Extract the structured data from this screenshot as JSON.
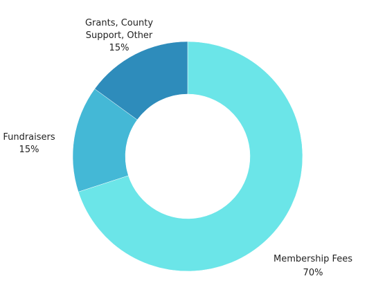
{
  "chart_data": {
    "type": "pie",
    "variant": "donut",
    "title": "",
    "legend": "none",
    "slices": [
      {
        "name": "Membership Fees",
        "value": 70,
        "value_label": "70%",
        "label_lines": [
          "Membership Fees"
        ],
        "color": "#6be5e8"
      },
      {
        "name": "Fundraisers",
        "value": 15,
        "value_label": "15%",
        "label_lines": [
          "Fundraisers"
        ],
        "color": "#44b8d6"
      },
      {
        "name": "Grants, County Support, Other",
        "value": 15,
        "value_label": "15%",
        "label_lines": [
          "Grants, County",
          "Support, Other"
        ],
        "color": "#2e8cbb"
      }
    ]
  }
}
